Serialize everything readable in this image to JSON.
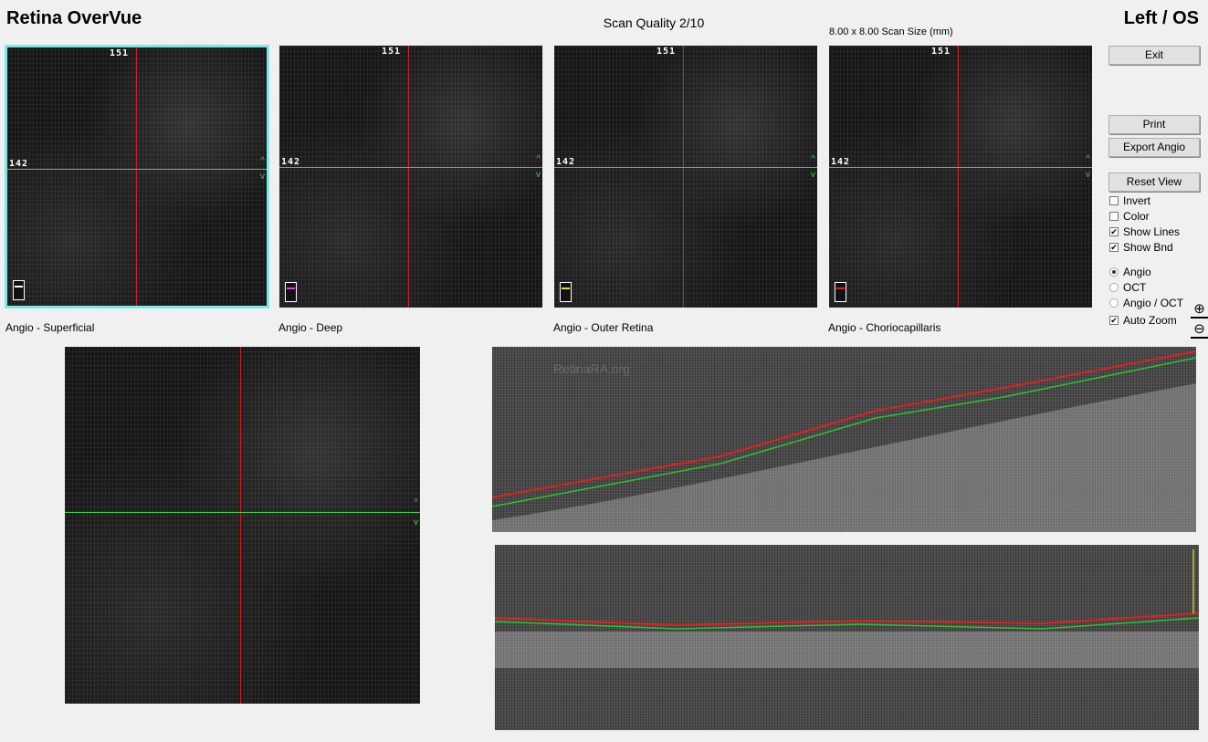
{
  "header": {
    "title": "Retina OverVue",
    "scan_quality": "Scan Quality 2/10",
    "scan_size": "8.00 x 8.00 Scan Size (mm)",
    "eye": "Left / OS"
  },
  "panels": [
    {
      "label": "Angio - Superficial",
      "top_num": "151",
      "left_num": "142",
      "legend_color": "#ffffff",
      "selected": true
    },
    {
      "label": "Angio - Deep",
      "top_num": "151",
      "left_num": "142",
      "legend_color": "#e040e0",
      "selected": false
    },
    {
      "label": "Angio - Outer Retina",
      "top_num": "151",
      "left_num": "142",
      "legend_color": "#f0e020",
      "selected": false
    },
    {
      "label": "Angio - Choriocapillaris",
      "top_num": "151",
      "left_num": "142",
      "legend_color": "#e02020",
      "selected": false
    }
  ],
  "buttons": {
    "exit": "Exit",
    "print": "Print",
    "export": "Export Angio",
    "reset": "Reset View"
  },
  "options": {
    "invert": {
      "label": "Invert",
      "checked": false
    },
    "color": {
      "label": "Color",
      "checked": false
    },
    "show_lines": {
      "label": "Show Lines",
      "checked": true
    },
    "show_bnd": {
      "label": "Show Bnd",
      "checked": true
    },
    "auto_zoom": {
      "label": "Auto Zoom",
      "checked": true
    }
  },
  "view_mode": {
    "options": [
      "Angio",
      "OCT",
      "Angio / OCT"
    ],
    "selected": "Angio"
  },
  "icons": {
    "zoom_in": "zoom-in-icon",
    "zoom_out": "zoom-out-icon"
  },
  "watermark": "RetinaRA.org",
  "colors": {
    "crosshair_vertical": "#d02020",
    "crosshair_horizontal": "#40d040",
    "selection": "#7ee8e8",
    "boundary_upper": "#e02020",
    "boundary_lower": "#30c030"
  }
}
